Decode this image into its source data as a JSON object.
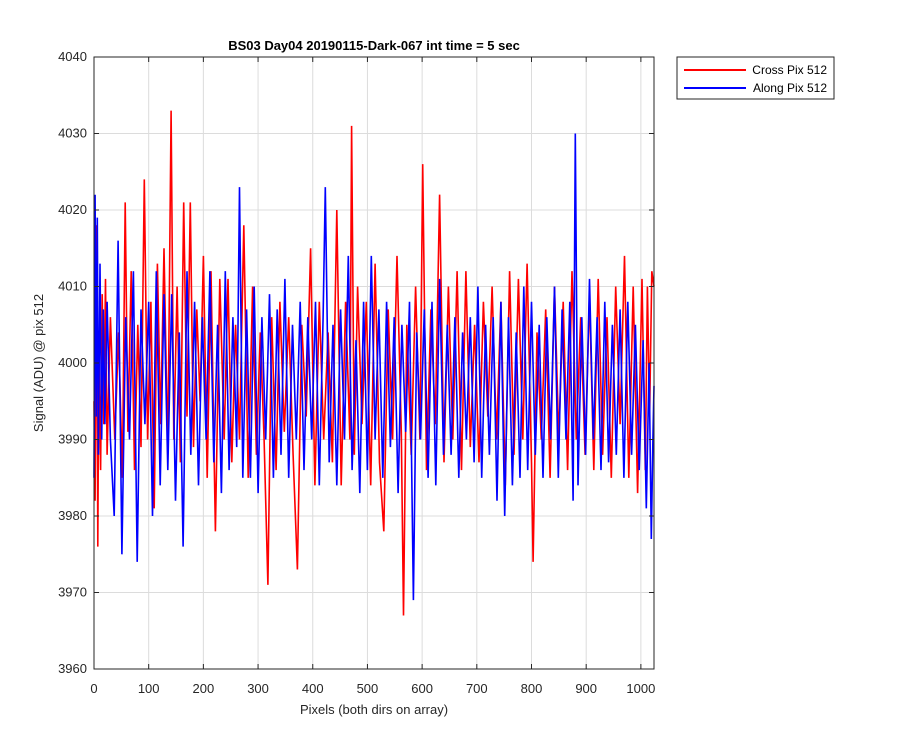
{
  "chart_data": {
    "type": "line",
    "title": "BS03 Day04 20190115-Dark-067 int time = 5 sec",
    "xlabel": "Pixels (both dirs on array)",
    "ylabel": "Signal (ADU) @ pix 512",
    "xlim": [
      0,
      1024
    ],
    "ylim": [
      3960,
      4040
    ],
    "x_ticks": [
      0,
      100,
      200,
      300,
      400,
      500,
      600,
      700,
      800,
      900,
      1000
    ],
    "y_ticks": [
      3960,
      3970,
      3980,
      3990,
      4000,
      4010,
      4020,
      4030,
      4040
    ],
    "grid": true,
    "legend_position": "outside top-right",
    "series": [
      {
        "name": "Cross Pix 512",
        "color": "#ff0000",
        "points": [
          [
            0,
            3995
          ],
          [
            2,
            3982
          ],
          [
            5,
            4018
          ],
          [
            7,
            3976
          ],
          [
            9,
            4003
          ],
          [
            12,
            3986
          ],
          [
            15,
            4009
          ],
          [
            18,
            3992
          ],
          [
            21,
            4011
          ],
          [
            24,
            3988
          ],
          [
            30,
            4006
          ],
          [
            38,
            3990
          ],
          [
            45,
            4004
          ],
          [
            52,
            3985
          ],
          [
            57,
            4021
          ],
          [
            62,
            3991
          ],
          [
            68,
            4012
          ],
          [
            74,
            3986
          ],
          [
            80,
            4005
          ],
          [
            86,
            3989
          ],
          [
            92,
            4024
          ],
          [
            98,
            3990
          ],
          [
            104,
            4008
          ],
          [
            110,
            3981
          ],
          [
            116,
            4013
          ],
          [
            122,
            3992
          ],
          [
            128,
            4015
          ],
          [
            135,
            3988
          ],
          [
            141,
            4033
          ],
          [
            146,
            3990
          ],
          [
            152,
            4010
          ],
          [
            158,
            3987
          ],
          [
            164,
            4021
          ],
          [
            170,
            3993
          ],
          [
            176,
            4021
          ],
          [
            182,
            3989
          ],
          [
            188,
            4007
          ],
          [
            194,
            3995
          ],
          [
            200,
            4014
          ],
          [
            207,
            3985
          ],
          [
            214,
            4012
          ],
          [
            222,
            3978
          ],
          [
            230,
            4011
          ],
          [
            238,
            3990
          ],
          [
            245,
            4011
          ],
          [
            252,
            3987
          ],
          [
            259,
            4005
          ],
          [
            266,
            3990
          ],
          [
            274,
            4018
          ],
          [
            282,
            3985
          ],
          [
            290,
            4010
          ],
          [
            297,
            3988
          ],
          [
            304,
            4004
          ],
          [
            311,
            3990
          ],
          [
            318,
            3971
          ],
          [
            325,
            4006
          ],
          [
            333,
            3986
          ],
          [
            340,
            4008
          ],
          [
            348,
            3991
          ],
          [
            356,
            4006
          ],
          [
            364,
            3988
          ],
          [
            372,
            3973
          ],
          [
            380,
            4005
          ],
          [
            388,
            3993
          ],
          [
            396,
            4015
          ],
          [
            404,
            3984
          ],
          [
            412,
            4008
          ],
          [
            420,
            3990
          ],
          [
            428,
            4004
          ],
          [
            436,
            3987
          ],
          [
            444,
            4020
          ],
          [
            452,
            3984
          ],
          [
            460,
            4008
          ],
          [
            468,
            3990
          ],
          [
            471,
            4031
          ],
          [
            476,
            3988
          ],
          [
            482,
            4010
          ],
          [
            490,
            3992
          ],
          [
            498,
            4008
          ],
          [
            506,
            3984
          ],
          [
            514,
            4013
          ],
          [
            522,
            3987
          ],
          [
            530,
            3978
          ],
          [
            538,
            4007
          ],
          [
            546,
            3990
          ],
          [
            554,
            4014
          ],
          [
            562,
            3991
          ],
          [
            566,
            3967
          ],
          [
            572,
            4005
          ],
          [
            580,
            3988
          ],
          [
            588,
            4010
          ],
          [
            596,
            3990
          ],
          [
            601,
            4026
          ],
          [
            608,
            3986
          ],
          [
            616,
            4007
          ],
          [
            624,
            3992
          ],
          [
            632,
            4022
          ],
          [
            640,
            3987
          ],
          [
            648,
            4010
          ],
          [
            656,
            3990
          ],
          [
            664,
            4012
          ],
          [
            672,
            3986
          ],
          [
            680,
            4012
          ],
          [
            688,
            3989
          ],
          [
            696,
            4005
          ],
          [
            704,
            3987
          ],
          [
            712,
            4008
          ],
          [
            720,
            3993
          ],
          [
            728,
            4010
          ],
          [
            736,
            3990
          ],
          [
            744,
            4008
          ],
          [
            752,
            3984
          ],
          [
            760,
            4012
          ],
          [
            768,
            3988
          ],
          [
            776,
            4011
          ],
          [
            784,
            3990
          ],
          [
            792,
            4013
          ],
          [
            800,
            3987
          ],
          [
            803,
            3974
          ],
          [
            810,
            4004
          ],
          [
            818,
            3990
          ],
          [
            826,
            4007
          ],
          [
            834,
            3985
          ],
          [
            842,
            4010
          ],
          [
            850,
            3990
          ],
          [
            858,
            4008
          ],
          [
            866,
            3986
          ],
          [
            874,
            4012
          ],
          [
            882,
            3990
          ],
          [
            890,
            4006
          ],
          [
            898,
            3988
          ],
          [
            906,
            4009
          ],
          [
            914,
            3986
          ],
          [
            922,
            4011
          ],
          [
            930,
            3988
          ],
          [
            938,
            4006
          ],
          [
            946,
            3985
          ],
          [
            954,
            4010
          ],
          [
            962,
            3992
          ],
          [
            970,
            4014
          ],
          [
            978,
            3985
          ],
          [
            986,
            4010
          ],
          [
            994,
            3983
          ],
          [
            1002,
            4011
          ],
          [
            1008,
            3986
          ],
          [
            1012,
            4010
          ],
          [
            1016,
            3993
          ],
          [
            1020,
            4012
          ],
          [
            1024,
            4010
          ]
        ]
      },
      {
        "name": "Along Pix 512",
        "color": "#0000ff",
        "points": [
          [
            0,
            3985
          ],
          [
            2,
            4022
          ],
          [
            4,
            3993
          ],
          [
            6,
            4019
          ],
          [
            8,
            3988
          ],
          [
            11,
            4013
          ],
          [
            14,
            3990
          ],
          [
            17,
            4007
          ],
          [
            20,
            3992
          ],
          [
            24,
            4008
          ],
          [
            30,
            3990
          ],
          [
            37,
            3980
          ],
          [
            44,
            4016
          ],
          [
            51,
            3975
          ],
          [
            58,
            4006
          ],
          [
            65,
            3990
          ],
          [
            72,
            4012
          ],
          [
            79,
            3974
          ],
          [
            86,
            4007
          ],
          [
            93,
            3992
          ],
          [
            100,
            4008
          ],
          [
            107,
            3980
          ],
          [
            114,
            4012
          ],
          [
            121,
            3984
          ],
          [
            128,
            4009
          ],
          [
            135,
            3986
          ],
          [
            142,
            4009
          ],
          [
            149,
            3982
          ],
          [
            156,
            4004
          ],
          [
            163,
            3976
          ],
          [
            170,
            4012
          ],
          [
            177,
            3988
          ],
          [
            184,
            4008
          ],
          [
            191,
            3984
          ],
          [
            198,
            4006
          ],
          [
            205,
            3990
          ],
          [
            212,
            4012
          ],
          [
            219,
            3987
          ],
          [
            226,
            4005
          ],
          [
            233,
            3983
          ],
          [
            240,
            4012
          ],
          [
            247,
            3986
          ],
          [
            254,
            4006
          ],
          [
            261,
            3989
          ],
          [
            266,
            4023
          ],
          [
            272,
            3985
          ],
          [
            279,
            4007
          ],
          [
            286,
            3985
          ],
          [
            293,
            4010
          ],
          [
            300,
            3983
          ],
          [
            307,
            4006
          ],
          [
            314,
            3990
          ],
          [
            321,
            4009
          ],
          [
            328,
            3985
          ],
          [
            335,
            4007
          ],
          [
            342,
            3988
          ],
          [
            349,
            4011
          ],
          [
            356,
            3985
          ],
          [
            363,
            4005
          ],
          [
            370,
            3990
          ],
          [
            377,
            4008
          ],
          [
            384,
            3986
          ],
          [
            391,
            4006
          ],
          [
            398,
            3990
          ],
          [
            405,
            4008
          ],
          [
            412,
            3984
          ],
          [
            419,
            4006
          ],
          [
            423,
            4023
          ],
          [
            430,
            3987
          ],
          [
            437,
            4005
          ],
          [
            444,
            3984
          ],
          [
            451,
            4007
          ],
          [
            458,
            3990
          ],
          [
            465,
            4014
          ],
          [
            472,
            3986
          ],
          [
            479,
            4003
          ],
          [
            486,
            3983
          ],
          [
            493,
            4008
          ],
          [
            500,
            3986
          ],
          [
            507,
            4014
          ],
          [
            514,
            3990
          ],
          [
            521,
            4007
          ],
          [
            528,
            3985
          ],
          [
            535,
            4008
          ],
          [
            542,
            3989
          ],
          [
            549,
            4006
          ],
          [
            556,
            3983
          ],
          [
            563,
            4005
          ],
          [
            570,
            3991
          ],
          [
            577,
            4008
          ],
          [
            584,
            3969
          ],
          [
            590,
            4004
          ],
          [
            597,
            3990
          ],
          [
            604,
            4007
          ],
          [
            611,
            3985
          ],
          [
            618,
            4008
          ],
          [
            625,
            3984
          ],
          [
            632,
            4011
          ],
          [
            639,
            3988
          ],
          [
            646,
            4005
          ],
          [
            653,
            3988
          ],
          [
            660,
            4006
          ],
          [
            667,
            3985
          ],
          [
            674,
            4004
          ],
          [
            681,
            3990
          ],
          [
            688,
            4006
          ],
          [
            695,
            3987
          ],
          [
            702,
            4010
          ],
          [
            709,
            3985
          ],
          [
            716,
            4005
          ],
          [
            723,
            3988
          ],
          [
            730,
            4006
          ],
          [
            737,
            3982
          ],
          [
            744,
            4008
          ],
          [
            751,
            3980
          ],
          [
            758,
            4006
          ],
          [
            765,
            3984
          ],
          [
            772,
            4004
          ],
          [
            779,
            3985
          ],
          [
            786,
            4010
          ],
          [
            793,
            3986
          ],
          [
            800,
            4008
          ],
          [
            807,
            3988
          ],
          [
            814,
            4005
          ],
          [
            821,
            3985
          ],
          [
            828,
            4006
          ],
          [
            835,
            3990
          ],
          [
            842,
            4010
          ],
          [
            849,
            3985
          ],
          [
            856,
            4007
          ],
          [
            863,
            3990
          ],
          [
            870,
            4008
          ],
          [
            876,
            3982
          ],
          [
            880,
            4030
          ],
          [
            885,
            3984
          ],
          [
            892,
            4006
          ],
          [
            899,
            3988
          ],
          [
            906,
            4011
          ],
          [
            913,
            3990
          ],
          [
            920,
            4006
          ],
          [
            927,
            3986
          ],
          [
            934,
            4008
          ],
          [
            941,
            3987
          ],
          [
            948,
            4005
          ],
          [
            955,
            3988
          ],
          [
            962,
            4007
          ],
          [
            969,
            3985
          ],
          [
            976,
            4008
          ],
          [
            983,
            3988
          ],
          [
            990,
            4005
          ],
          [
            997,
            3986
          ],
          [
            1004,
            4003
          ],
          [
            1010,
            3981
          ],
          [
            1015,
            4000
          ],
          [
            1019,
            3977
          ],
          [
            1022,
            3990
          ],
          [
            1024,
            3997
          ]
        ]
      }
    ]
  }
}
